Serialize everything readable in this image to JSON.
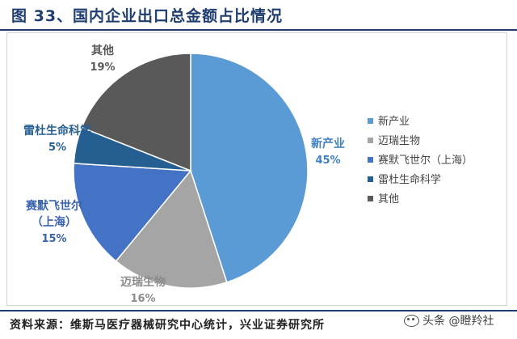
{
  "header": {
    "title": "图 33、国内企业出口总金额占比情况"
  },
  "footer": {
    "source": "资料来源：维斯马医疗器械研究中心统计，兴业证券研究所",
    "watermark": "头条 @瞪羚社"
  },
  "chart_data": {
    "type": "pie",
    "legend_position": "right",
    "slices": [
      {
        "name": "新产业",
        "value": 45,
        "label": "45%",
        "color": "#5b9bd5",
        "label_color": "#3f80c3",
        "legend": "新产业"
      },
      {
        "name": "迈瑞生物",
        "value": 16,
        "label": "16%",
        "color": "#a5a5a5",
        "label_color": "#8c8c8c",
        "legend": "迈瑞生物"
      },
      {
        "name": "赛默飞世尔（上海）",
        "value": 15,
        "label": "15%",
        "color": "#4472c4",
        "label_color": "#3a62ad",
        "legend": "赛默飞世尔（上海）",
        "label_lines": [
          "赛默飞世尔",
          "（上海）"
        ]
      },
      {
        "name": "雷杜生命科学",
        "value": 5,
        "label": "5%",
        "color": "#255e91",
        "label_color": "#255e91",
        "legend": "雷杜生命科学"
      },
      {
        "name": "其他",
        "value": 19,
        "label": "19%",
        "color": "#595959",
        "label_color": "#595959",
        "legend": "其他"
      }
    ]
  }
}
